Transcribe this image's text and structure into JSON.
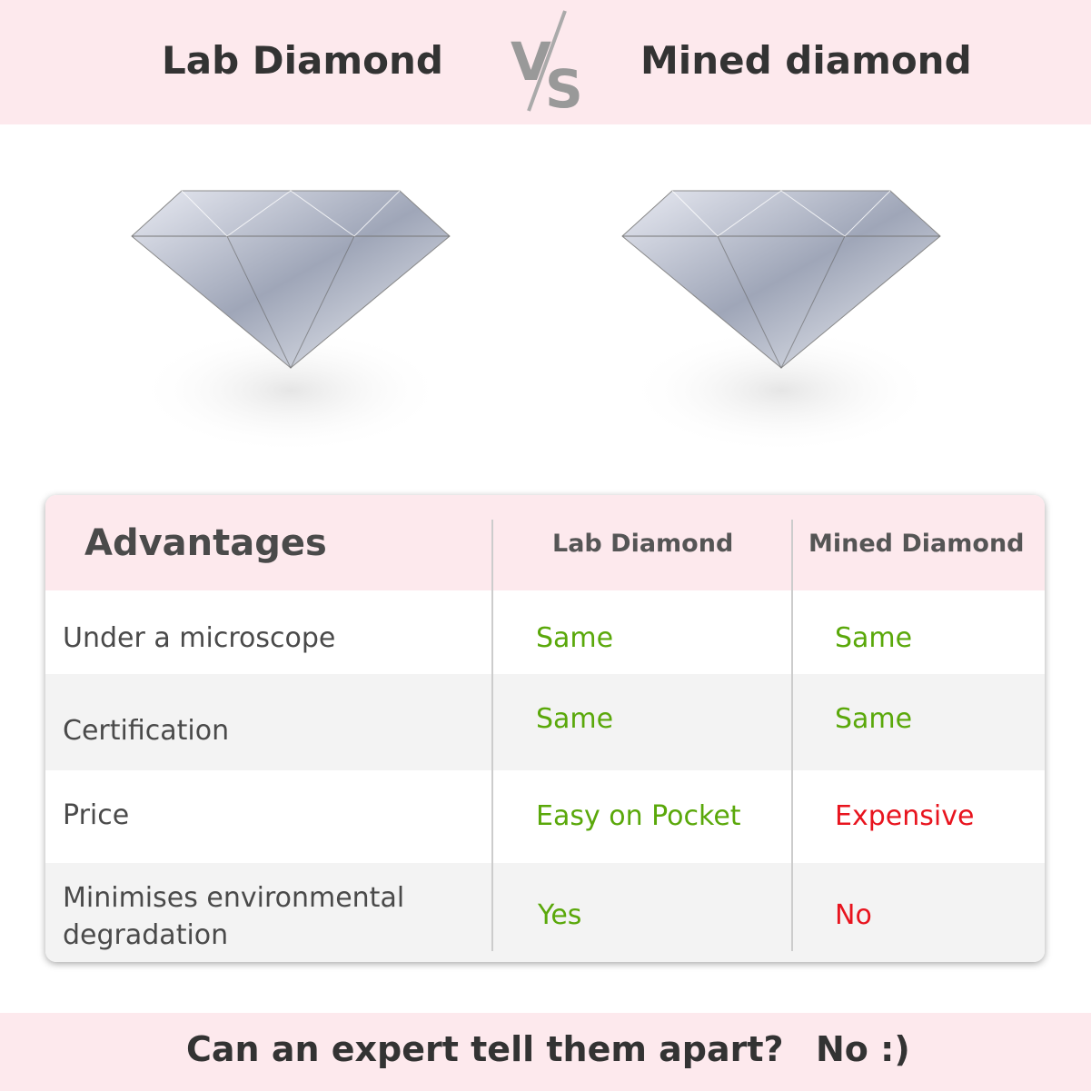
{
  "header": {
    "left_title": "Lab Diamond",
    "vs_label": "VS",
    "right_title": "Mined diamond"
  },
  "table": {
    "headers": [
      "Advantages",
      "Lab Diamond",
      "Mined Diamond"
    ],
    "rows": [
      {
        "label": "Under a microscope",
        "lab": "Same",
        "mined": "Same",
        "lab_status": "good",
        "mined_status": "good"
      },
      {
        "label": "Certification",
        "lab": "Same",
        "mined": "Same",
        "lab_status": "good",
        "mined_status": "good"
      },
      {
        "label": "Price",
        "lab": "Easy on Pocket",
        "mined": "Expensive",
        "lab_status": "good",
        "mined_status": "bad"
      },
      {
        "label": "Minimises environmental degradation",
        "lab": "Yes",
        "mined": "No",
        "lab_status": "good",
        "mined_status": "bad"
      }
    ]
  },
  "footer": {
    "question": "Can an expert tell them apart?",
    "answer": "No :)"
  },
  "colors": {
    "pink": "#fde9ed",
    "good": "#5aa80a",
    "bad": "#e8141e",
    "text": "#4a4a4a"
  }
}
